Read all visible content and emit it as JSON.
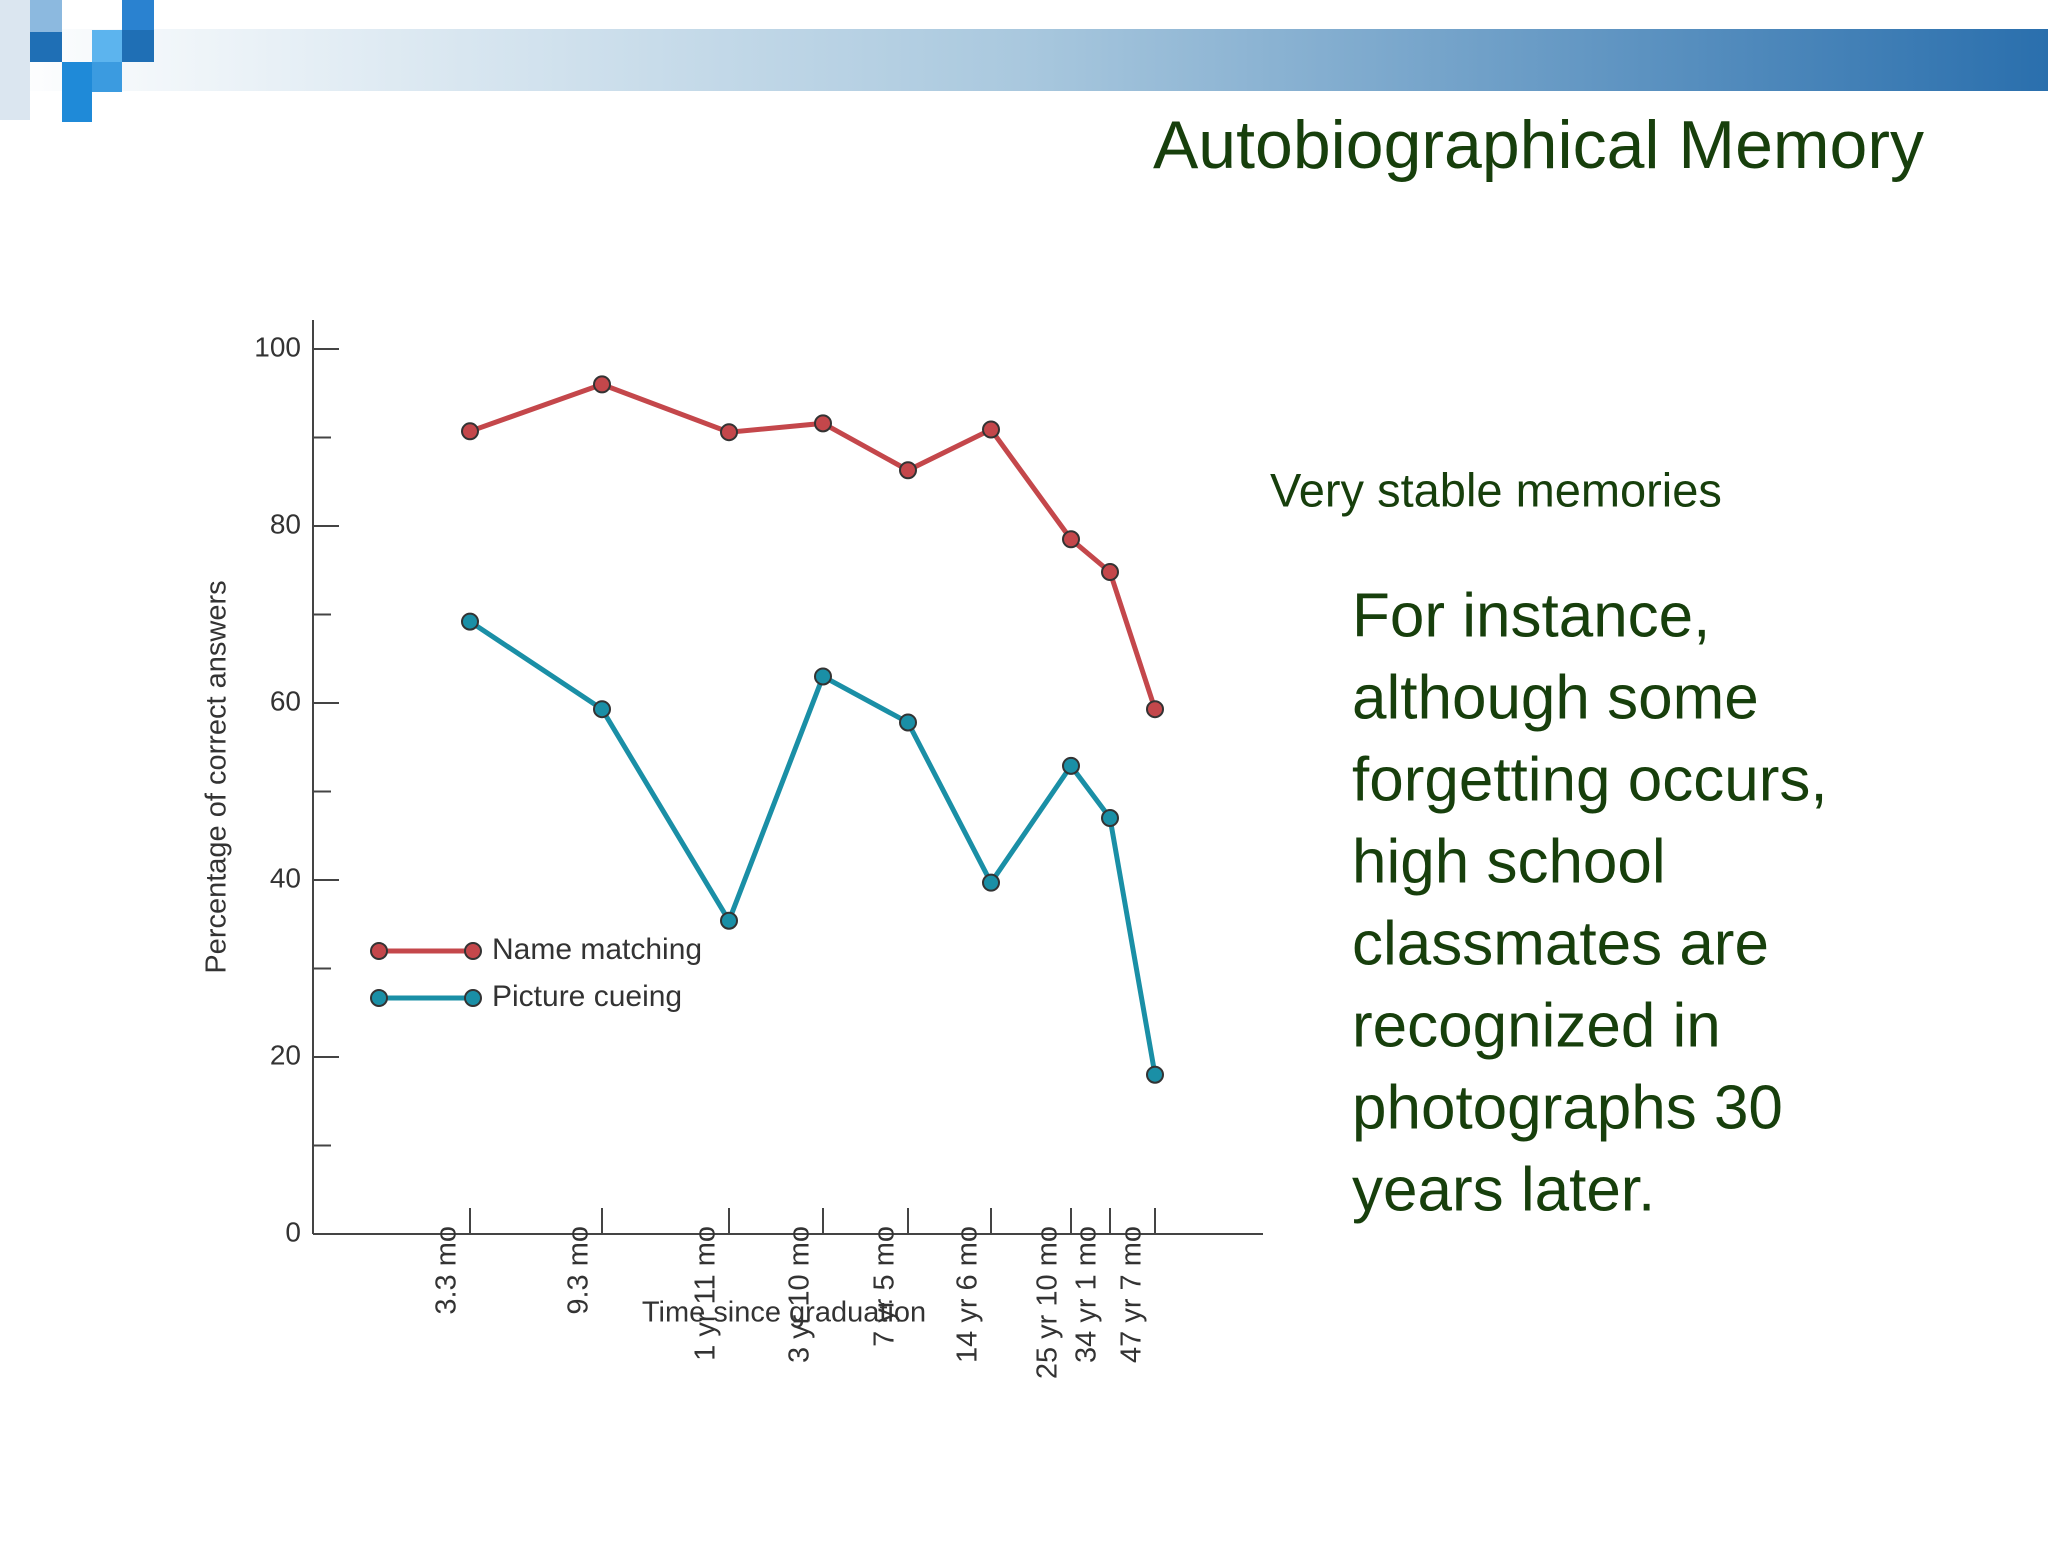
{
  "slide": {
    "title": "Autobiographical Memory",
    "subtitle": "Very stable memories",
    "paragraph": [
      "For instance,",
      "although some",
      "forgetting occurs,",
      "high school",
      "classmates are",
      "recognized in",
      "photographs 30",
      "years later."
    ]
  },
  "chart_data": {
    "type": "line",
    "x_label": "Time since graduation",
    "y_label": "Percentage of correct answers",
    "categories": [
      "3.3 mo",
      "9.3 mo",
      "1 yr 11 mo",
      "3 yr 10 mo",
      "7 yr 5 mo",
      "14 yr 6 mo",
      "25 yr 10 mo",
      "34 yr 1 mo",
      "47 yr 7 mo"
    ],
    "series": [
      {
        "name": "Name matching",
        "color": "#c4474b",
        "values": [
          90.7,
          96.0,
          90.6,
          91.6,
          86.3,
          90.9,
          78.5,
          74.8,
          59.3
        ]
      },
      {
        "name": "Picture cueing",
        "color": "#1a8fa6",
        "values": [
          69.2,
          59.3,
          35.4,
          63.0,
          57.8,
          39.7,
          52.9,
          47.0,
          18.0
        ]
      }
    ],
    "ylim": [
      0,
      100
    ],
    "yticks": [
      0,
      20,
      40,
      60,
      80,
      100
    ],
    "yticks_minor": [
      10,
      30,
      50,
      70,
      90
    ],
    "legend": "lower-left"
  }
}
